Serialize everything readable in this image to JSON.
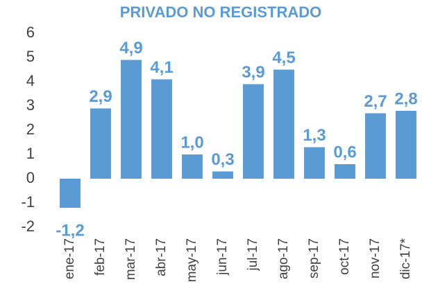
{
  "chart_data": {
    "type": "bar",
    "title": "PRIVADO NO REGISTRADO",
    "categories": [
      "ene-17",
      "feb-17",
      "mar-17",
      "abr-17",
      "may-17",
      "jun-17",
      "jul-17",
      "ago-17",
      "sep-17",
      "oct-17",
      "nov-17",
      "dic-17*"
    ],
    "values": [
      -1.2,
      2.9,
      4.9,
      4.1,
      1.0,
      0.3,
      3.9,
      4.5,
      1.3,
      0.6,
      2.7,
      2.8
    ],
    "value_labels": [
      "-1,2",
      "2,9",
      "4,9",
      "4,1",
      "1,0",
      "0,3",
      "3,9",
      "4,5",
      "1,3",
      "0,6",
      "2,7",
      "2,8"
    ],
    "color": "#5b9bd5",
    "ylim": [
      -2,
      6
    ],
    "yticks": [
      -2,
      -1,
      0,
      1,
      2,
      3,
      4,
      5,
      6
    ],
    "grid": false
  }
}
